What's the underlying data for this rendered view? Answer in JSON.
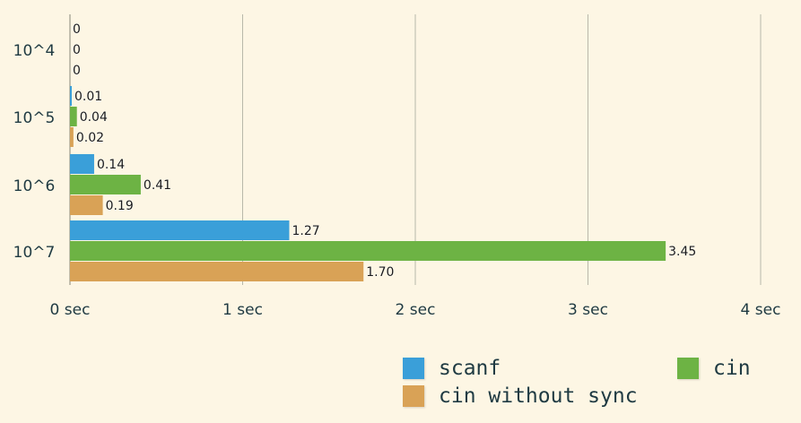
{
  "chart_data": {
    "type": "bar",
    "orientation": "horizontal",
    "categories": [
      "10^4",
      "10^5",
      "10^6",
      "10^7"
    ],
    "series": [
      {
        "name": "scanf",
        "color": "#3a9fd9",
        "values": [
          0,
          0.01,
          0.14,
          1.27
        ],
        "labels": [
          "0",
          "0.01",
          "0.14",
          "1.27"
        ]
      },
      {
        "name": "cin",
        "color": "#6db344",
        "values": [
          0,
          0.04,
          0.41,
          3.45
        ],
        "labels": [
          "0",
          "0.04",
          "0.41",
          "3.45"
        ]
      },
      {
        "name": "cin without sync",
        "color": "#d9a256",
        "values": [
          0,
          0.02,
          0.19,
          1.7
        ],
        "labels": [
          "0",
          "0.02",
          "0.19",
          "1.70"
        ]
      }
    ],
    "x_ticks": [
      "0 sec",
      "1 sec",
      "2 sec",
      "3 sec",
      "4 sec"
    ],
    "xlim": [
      0,
      4
    ],
    "grid": true,
    "legend_position": "bottom-right",
    "title": "",
    "xlabel": "",
    "ylabel": ""
  }
}
